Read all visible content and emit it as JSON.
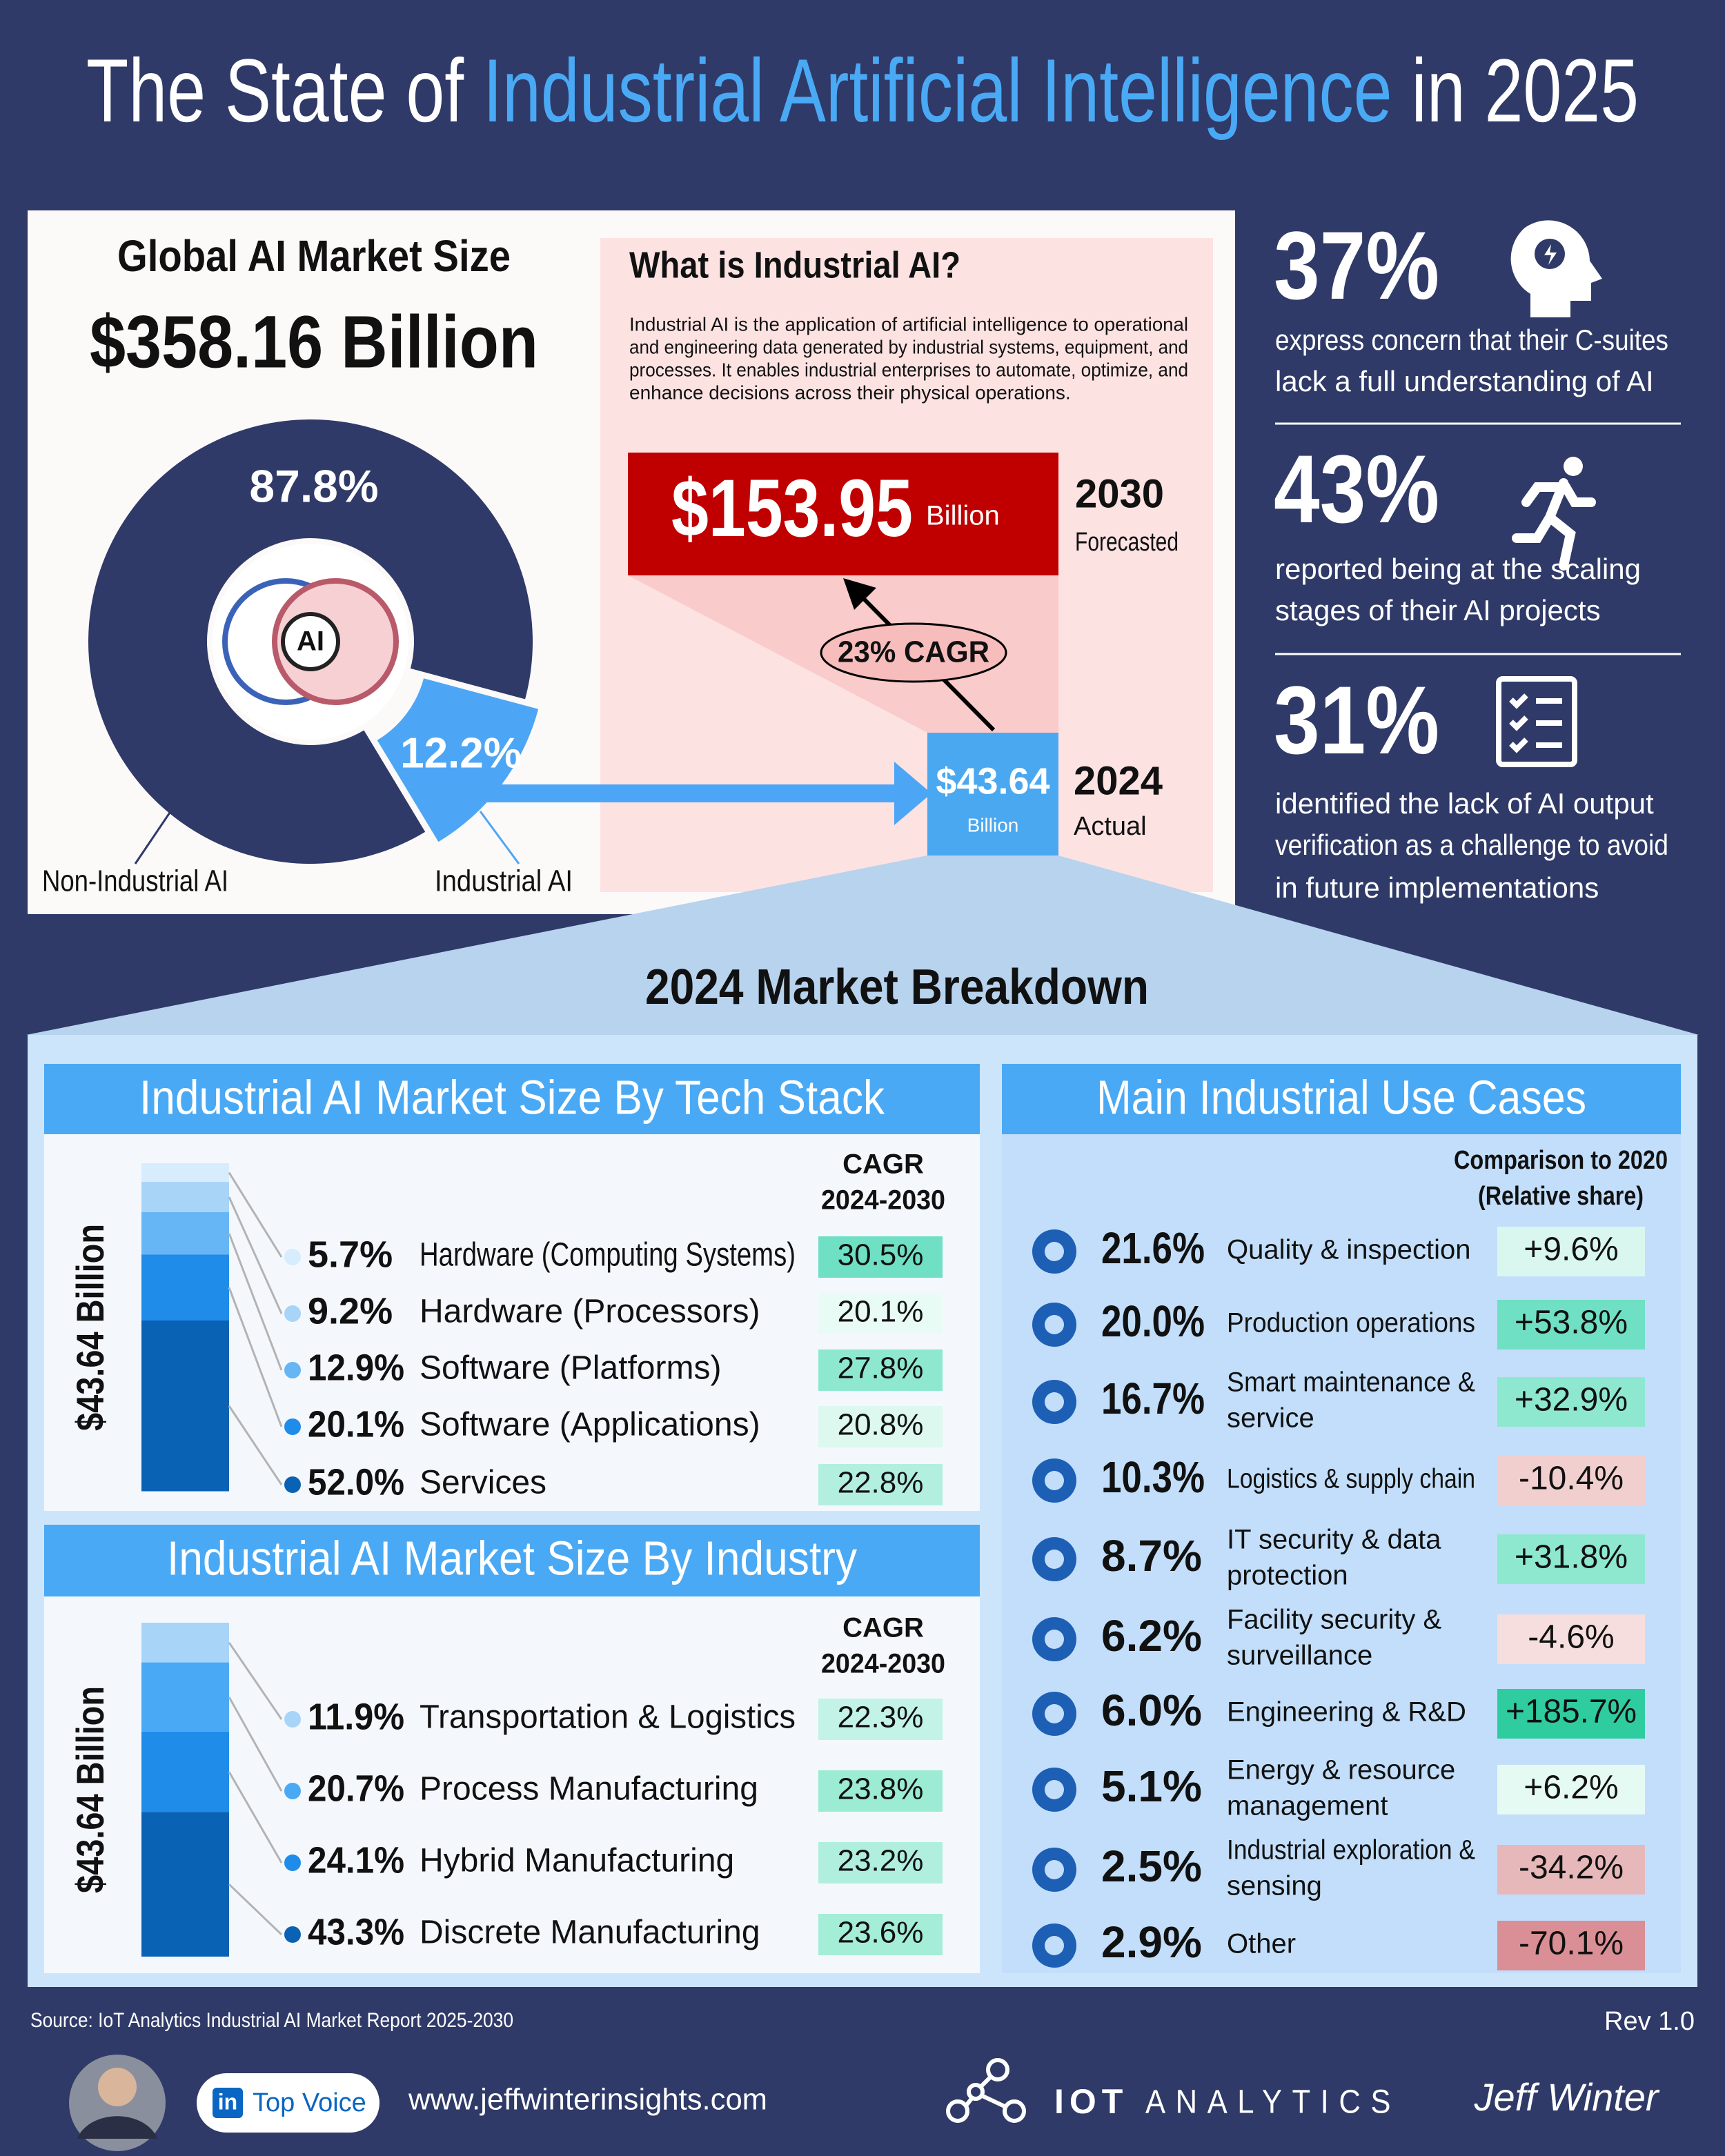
{
  "title": {
    "start": "The State of",
    "highlight": "Industrial Artificial Intelligence",
    "end": "in 2025"
  },
  "market": {
    "heading": "Global AI Market Size",
    "total": "$358.16 Billion",
    "donut": {
      "center_label": "AI",
      "slices": [
        {
          "name": "Non-Industrial AI",
          "value": 87.8,
          "value_label": "87.8%",
          "color": "#2f3a68"
        },
        {
          "name": "Industrial AI",
          "value": 12.2,
          "value_label": "12.2%",
          "color": "#4da6f5"
        }
      ]
    }
  },
  "what": {
    "heading": "What is Industrial AI?",
    "lines": [
      "Industrial AI is the application of artificial intelligence to operational",
      "and engineering data generated by industrial systems, equipment, and",
      "processes. It enables industrial enterprises to automate, optimize, and",
      "enhance decisions across their physical operations."
    ]
  },
  "forecast": {
    "future": {
      "value": "$153.95",
      "unit": "Billion",
      "year": "2030",
      "note": "Forecasted"
    },
    "cagr": "23% CAGR",
    "current": {
      "value": "$43.64",
      "unit": "Billion",
      "year": "2024",
      "note": "Actual"
    }
  },
  "stats": [
    {
      "value": "37%",
      "lines": [
        "express concern that their C-suites",
        "lack a full understanding of AI"
      ]
    },
    {
      "value": "43%",
      "lines": [
        "reported being at the scaling",
        "stages of their AI projects"
      ]
    },
    {
      "value": "31%",
      "lines": [
        "identified the lack of AI output",
        "verification as a challenge to avoid",
        "in future implementations"
      ]
    }
  ],
  "breakdown": {
    "title": "2024 Market Breakdown",
    "tech": {
      "heading": "Industrial AI Market Size By Tech Stack",
      "axis_label": "$43.64 Billion",
      "cagr_header": [
        "CAGR",
        "2024-2030"
      ],
      "items": [
        {
          "name": "Hardware (Computing Systems)",
          "share": 5.7,
          "share_label": "5.7%",
          "cagr": "30.5%",
          "color": "#d7ecfc",
          "cagr_color": "#6fe0c4"
        },
        {
          "name": "Hardware (Processors)",
          "share": 9.2,
          "share_label": "9.2%",
          "cagr": "20.1%",
          "color": "#a8d4f8",
          "cagr_color": "#e8fbf5"
        },
        {
          "name": "Software (Platforms)",
          "share": 12.9,
          "share_label": "12.9%",
          "cagr": "27.8%",
          "color": "#66b6f6",
          "cagr_color": "#8ee8d0"
        },
        {
          "name": "Software (Applications)",
          "share": 20.1,
          "share_label": "20.1%",
          "cagr": "20.8%",
          "color": "#1f8ce9",
          "cagr_color": "#dcf8ef"
        },
        {
          "name": "Services",
          "share": 52.0,
          "share_label": "52.0%",
          "cagr": "22.8%",
          "color": "#0a62b5",
          "cagr_color": "#b3efdf"
        }
      ]
    },
    "industry": {
      "heading": "Industrial AI Market Size By Industry",
      "axis_label": "$43.64 Billion",
      "cagr_header": [
        "CAGR",
        "2024-2030"
      ],
      "items": [
        {
          "name": "Transportation & Logistics",
          "share": 11.9,
          "share_label": "11.9%",
          "cagr": "22.3%",
          "color": "#a8d4f8",
          "cagr_color": "#c2f3e6"
        },
        {
          "name": "Process Manufacturing",
          "share": 20.7,
          "share_label": "20.7%",
          "cagr": "23.8%",
          "color": "#4aa9f4",
          "cagr_color": "#9cebd3"
        },
        {
          "name": "Hybrid Manufacturing",
          "share": 24.1,
          "share_label": "24.1%",
          "cagr": "23.2%",
          "color": "#1f8ce9",
          "cagr_color": "#b0efdd"
        },
        {
          "name": "Discrete Manufacturing",
          "share": 43.3,
          "share_label": "43.3%",
          "cagr": "23.6%",
          "color": "#0a62b5",
          "cagr_color": "#a4edd6"
        }
      ]
    },
    "use_cases": {
      "heading": "Main Industrial Use Cases",
      "comparison_header": [
        "Comparison to 2020",
        "(Relative share)"
      ],
      "items": [
        {
          "share": "21.6%",
          "name": [
            "Quality & inspection"
          ],
          "change": "+9.6%",
          "color": "#d9f7ee"
        },
        {
          "share": "20.0%",
          "name": [
            "Production operations"
          ],
          "change": "+53.8%",
          "color": "#6fe0c4"
        },
        {
          "share": "16.7%",
          "name": [
            "Smart maintenance &",
            "service"
          ],
          "change": "+32.9%",
          "color": "#8ee8d0"
        },
        {
          "share": "10.3%",
          "name": [
            "Logistics & supply chain"
          ],
          "change": "-10.4%",
          "color": "#f2cfcf"
        },
        {
          "share": "8.7%",
          "name": [
            "IT security & data",
            "protection"
          ],
          "change": "+31.8%",
          "color": "#8ee8d0"
        },
        {
          "share": "6.2%",
          "name": [
            "Facility security &",
            "surveillance"
          ],
          "change": "-4.6%",
          "color": "#f6dede"
        },
        {
          "share": "6.0%",
          "name": [
            "Engineering & R&D"
          ],
          "change": "+185.7%",
          "color": "#2fcca0"
        },
        {
          "share": "5.1%",
          "name": [
            "Energy & resource",
            "management"
          ],
          "change": "+6.2%",
          "color": "#e6faf4"
        },
        {
          "share": "2.5%",
          "name": [
            "Industrial exploration &",
            "sensing"
          ],
          "change": "-34.2%",
          "color": "#e6b8ba"
        },
        {
          "share": "2.9%",
          "name": [
            "Other"
          ],
          "change": "-70.1%",
          "color": "#d98f95"
        }
      ]
    }
  },
  "footer": {
    "source": "Source: IoT Analytics Industrial AI Market Report 2025-2030",
    "revision": "Rev 1.0",
    "badge_logo": "in",
    "badge": "Top Voice",
    "website": "www.jeffwinterinsights.com",
    "brand_bold": "IOT",
    "brand_light": "ANALYTICS",
    "signature": "Jeff Winter"
  }
}
